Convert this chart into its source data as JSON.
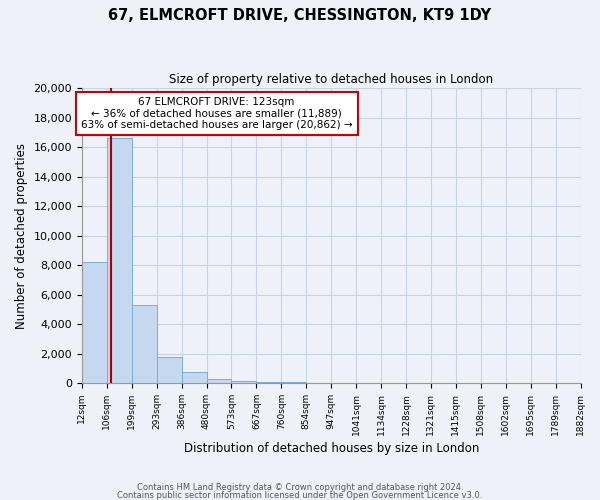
{
  "title": "67, ELMCROFT DRIVE, CHESSINGTON, KT9 1DY",
  "subtitle": "Size of property relative to detached houses in London",
  "xlabel": "Distribution of detached houses by size in London",
  "ylabel": "Number of detached properties",
  "bin_labels": [
    "12sqm",
    "106sqm",
    "199sqm",
    "293sqm",
    "386sqm",
    "480sqm",
    "573sqm",
    "667sqm",
    "760sqm",
    "854sqm",
    "947sqm",
    "1041sqm",
    "1134sqm",
    "1228sqm",
    "1321sqm",
    "1415sqm",
    "1508sqm",
    "1602sqm",
    "1695sqm",
    "1789sqm",
    "1882sqm"
  ],
  "bar_values": [
    8200,
    16600,
    5300,
    1800,
    750,
    300,
    150,
    100,
    50,
    0,
    0,
    0,
    0,
    0,
    0,
    0,
    0,
    0,
    0,
    0
  ],
  "bar_color": "#c5d8ef",
  "bar_edge_color": "#7badd4",
  "ylim": [
    0,
    20000
  ],
  "yticks": [
    0,
    2000,
    4000,
    6000,
    8000,
    10000,
    12000,
    14000,
    16000,
    18000,
    20000
  ],
  "annotation_line1": "67 ELMCROFT DRIVE: 123sqm",
  "annotation_line2": "← 36% of detached houses are smaller (11,889)",
  "annotation_line3": "63% of semi-detached houses are larger (20,862) →",
  "footer_line1": "Contains HM Land Registry data © Crown copyright and database right 2024.",
  "footer_line2": "Contains public sector information licensed under the Open Government Licence v3.0.",
  "bg_color": "#eef2f8",
  "plot_bg_color": "#eef2f8",
  "grid_color": "#c8d4e4",
  "redline_color": "#aa0000",
  "annotation_box_edge": "#cc0000"
}
